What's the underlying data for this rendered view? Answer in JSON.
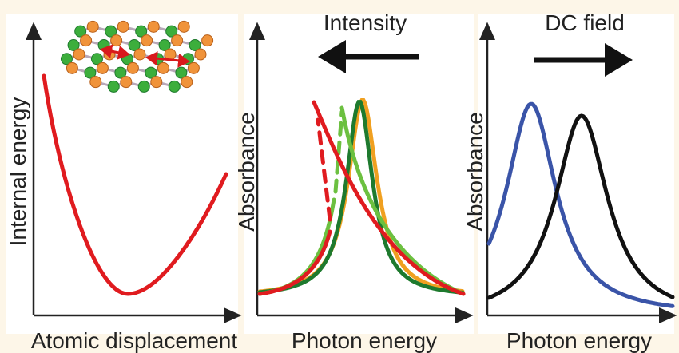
{
  "panels": [
    {
      "y_label": "Internal energy",
      "x_label": "Atomic displacement"
    },
    {
      "title": "Intensity",
      "y_label": "Absorbance",
      "x_label": "Photon energy"
    },
    {
      "title": "DC field",
      "y_label": "Absorbance",
      "x_label": "Photon energy"
    }
  ]
}
